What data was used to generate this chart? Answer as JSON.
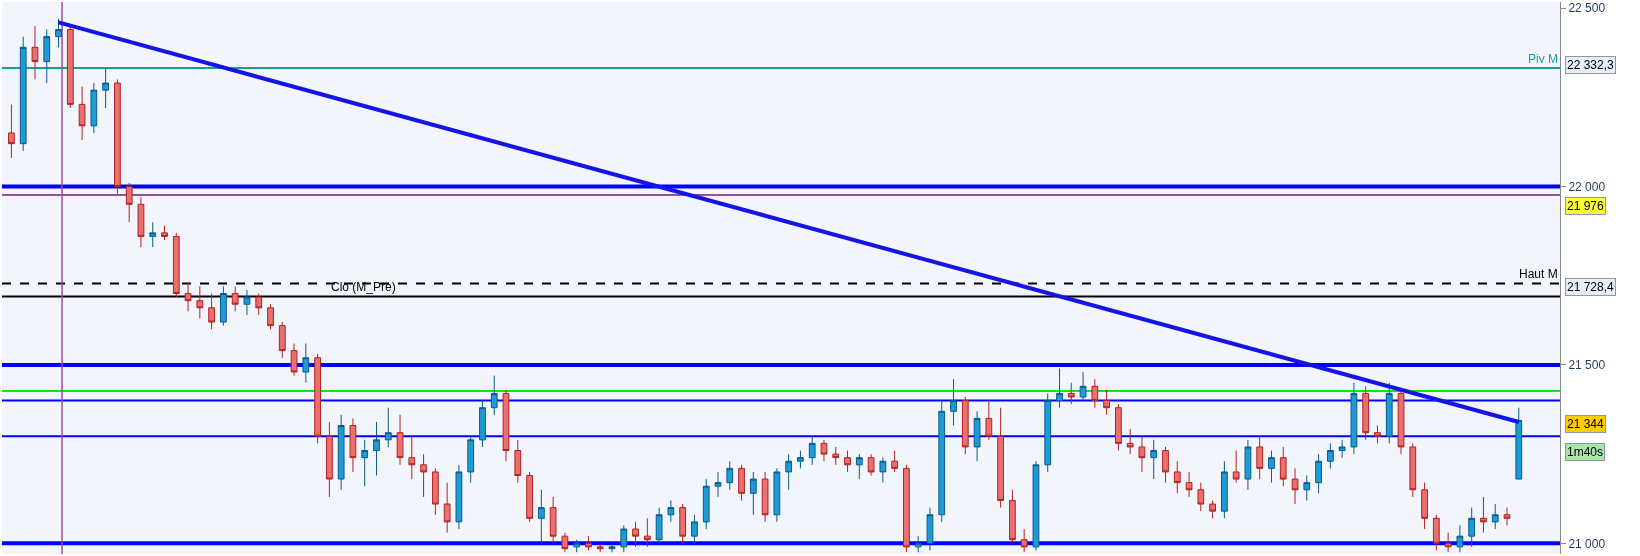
{
  "chart_data": {
    "type": "candlestick",
    "categories": [
      null,
      null,
      null,
      null,
      null,
      null,
      null,
      null,
      null,
      null,
      null,
      null,
      null,
      null,
      null,
      null,
      null,
      null,
      null,
      null,
      null,
      null,
      null,
      null,
      null,
      null,
      null,
      null,
      null,
      null,
      null,
      null,
      null,
      null,
      null,
      null,
      null,
      null,
      null,
      null,
      null,
      null,
      null,
      null,
      null,
      null,
      null,
      null,
      null,
      null,
      null,
      null,
      null,
      null,
      null,
      null,
      null,
      null,
      null,
      null,
      null,
      null,
      null,
      null,
      null,
      null,
      null,
      null,
      null,
      null,
      null,
      null,
      null,
      null,
      null,
      null,
      null,
      null,
      null,
      null,
      null,
      null,
      null,
      null,
      null,
      null,
      null,
      null,
      null,
      null,
      null,
      null,
      null,
      null,
      null,
      null,
      null,
      null,
      null,
      null,
      null,
      null,
      null,
      null,
      null,
      null,
      null,
      null,
      null,
      null,
      null,
      null,
      null,
      null,
      null,
      null,
      null,
      null,
      null,
      null,
      null,
      null,
      null,
      null,
      null,
      null,
      null,
      null,
      null
    ],
    "ohlc": [
      [
        22150,
        22230,
        22080,
        22120
      ],
      [
        22120,
        22420,
        22100,
        22390
      ],
      [
        22390,
        22450,
        22300,
        22350
      ],
      [
        22350,
        22440,
        22290,
        22420
      ],
      [
        22420,
        22470,
        22390,
        22440
      ],
      [
        22440,
        22450,
        22220,
        22230
      ],
      [
        22230,
        22280,
        22130,
        22170
      ],
      [
        22170,
        22290,
        22150,
        22270
      ],
      [
        22270,
        22330,
        22220,
        22290
      ],
      [
        22290,
        22300,
        21980,
        22000
      ],
      [
        22000,
        22010,
        21900,
        21950
      ],
      [
        21950,
        21970,
        21830,
        21860
      ],
      [
        21860,
        21900,
        21830,
        21870
      ],
      [
        21870,
        21890,
        21850,
        21860
      ],
      [
        21860,
        21870,
        21690,
        21700
      ],
      [
        21700,
        21730,
        21650,
        21680
      ],
      [
        21680,
        21720,
        21630,
        21660
      ],
      [
        21660,
        21700,
        21600,
        21620
      ],
      [
        21620,
        21720,
        21610,
        21700
      ],
      [
        21700,
        21720,
        21650,
        21670
      ],
      [
        21670,
        21710,
        21640,
        21690
      ],
      [
        21690,
        21700,
        21640,
        21660
      ],
      [
        21660,
        21670,
        21600,
        21610
      ],
      [
        21610,
        21620,
        21520,
        21540
      ],
      [
        21540,
        21560,
        21470,
        21480
      ],
      [
        21480,
        21560,
        21450,
        21520
      ],
      [
        21520,
        21530,
        21280,
        21300
      ],
      [
        21300,
        21340,
        21130,
        21180
      ],
      [
        21180,
        21360,
        21150,
        21330
      ],
      [
        21330,
        21350,
        21200,
        21240
      ],
      [
        21240,
        21290,
        21160,
        21260
      ],
      [
        21260,
        21340,
        21190,
        21290
      ],
      [
        21290,
        21380,
        21270,
        21310
      ],
      [
        21310,
        21360,
        21220,
        21240
      ],
      [
        21240,
        21300,
        21180,
        21220
      ],
      [
        21220,
        21250,
        21130,
        21200
      ],
      [
        21200,
        21210,
        21080,
        21110
      ],
      [
        21110,
        21170,
        21030,
        21060
      ],
      [
        21060,
        21220,
        21040,
        21200
      ],
      [
        21200,
        21300,
        21170,
        21290
      ],
      [
        21290,
        21400,
        21270,
        21380
      ],
      [
        21380,
        21470,
        21360,
        21420
      ],
      [
        21420,
        21430,
        21230,
        21260
      ],
      [
        21260,
        21290,
        21170,
        21190
      ],
      [
        21190,
        21200,
        21060,
        21070
      ],
      [
        21070,
        21150,
        21000,
        21100
      ],
      [
        21100,
        21130,
        21000,
        21020
      ],
      [
        21020,
        21030,
        20975,
        20985
      ],
      [
        20990,
        21010,
        20975,
        21000
      ],
      [
        21000,
        21020,
        20980,
        20990
      ],
      [
        20990,
        21000,
        20975,
        20985
      ],
      [
        20985,
        21000,
        20975,
        20990
      ],
      [
        20990,
        21050,
        20975,
        21040
      ],
      [
        21040,
        21060,
        20990,
        21020
      ],
      [
        21020,
        21070,
        20990,
        21010
      ],
      [
        21010,
        21100,
        21000,
        21080
      ],
      [
        21080,
        21120,
        21060,
        21100
      ],
      [
        21100,
        21110,
        21000,
        21020
      ],
      [
        21020,
        21080,
        21000,
        21060
      ],
      [
        21060,
        21180,
        21040,
        21160
      ],
      [
        21160,
        21200,
        21130,
        21170
      ],
      [
        21170,
        21230,
        21150,
        21210
      ],
      [
        21210,
        21220,
        21120,
        21140
      ],
      [
        21140,
        21200,
        21080,
        21180
      ],
      [
        21180,
        21200,
        21060,
        21080
      ],
      [
        21080,
        21210,
        21060,
        21200
      ],
      [
        21200,
        21250,
        21150,
        21230
      ],
      [
        21230,
        21260,
        21210,
        21240
      ],
      [
        21240,
        21300,
        21220,
        21280
      ],
      [
        21280,
        21290,
        21230,
        21250
      ],
      [
        21250,
        21270,
        21220,
        21240
      ],
      [
        21240,
        21260,
        21200,
        21220
      ],
      [
        21220,
        21250,
        21180,
        21240
      ],
      [
        21240,
        21250,
        21190,
        21200
      ],
      [
        21200,
        21240,
        21170,
        21230
      ],
      [
        21230,
        21260,
        21200,
        21210
      ],
      [
        21210,
        21220,
        20975,
        20990
      ],
      [
        20990,
        21020,
        20975,
        21000
      ],
      [
        21000,
        21100,
        20980,
        21080
      ],
      [
        21080,
        21400,
        21060,
        21370
      ],
      [
        21370,
        21460,
        21330,
        21400
      ],
      [
        21400,
        21410,
        21250,
        21270
      ],
      [
        21270,
        21370,
        21230,
        21350
      ],
      [
        21350,
        21400,
        21290,
        21300
      ],
      [
        21300,
        21380,
        21100,
        21120
      ],
      [
        21120,
        21150,
        21000,
        21010
      ],
      [
        21010,
        21040,
        20975,
        20990
      ],
      [
        20990,
        21230,
        20980,
        21220
      ],
      [
        21220,
        21420,
        21200,
        21400
      ],
      [
        21400,
        21490,
        21380,
        21420
      ],
      [
        21420,
        21450,
        21390,
        21410
      ],
      [
        21410,
        21480,
        21400,
        21440
      ],
      [
        21440,
        21460,
        21380,
        21400
      ],
      [
        21400,
        21430,
        21360,
        21380
      ],
      [
        21380,
        21390,
        21260,
        21280
      ],
      [
        21280,
        21320,
        21250,
        21270
      ],
      [
        21270,
        21300,
        21200,
        21240
      ],
      [
        21240,
        21290,
        21180,
        21260
      ],
      [
        21260,
        21270,
        21170,
        21200
      ],
      [
        21200,
        21230,
        21140,
        21170
      ],
      [
        21170,
        21200,
        21130,
        21150
      ],
      [
        21150,
        21170,
        21090,
        21110
      ],
      [
        21110,
        21120,
        21070,
        21090
      ],
      [
        21090,
        21230,
        21070,
        21200
      ],
      [
        21200,
        21260,
        21170,
        21180
      ],
      [
        21180,
        21290,
        21150,
        21270
      ],
      [
        21270,
        21300,
        21180,
        21210
      ],
      [
        21210,
        21260,
        21170,
        21240
      ],
      [
        21240,
        21270,
        21160,
        21180
      ],
      [
        21180,
        21210,
        21110,
        21150
      ],
      [
        21150,
        21190,
        21120,
        21170
      ],
      [
        21170,
        21250,
        21140,
        21230
      ],
      [
        21230,
        21280,
        21210,
        21260
      ],
      [
        21260,
        21290,
        21240,
        21270
      ],
      [
        21270,
        21450,
        21250,
        21420
      ],
      [
        21420,
        21440,
        21290,
        21310
      ],
      [
        21310,
        21330,
        21280,
        21300
      ],
      [
        21300,
        21450,
        21280,
        21420
      ],
      [
        21420,
        21430,
        21250,
        21270
      ],
      [
        21270,
        21280,
        21130,
        21150
      ],
      [
        21150,
        21170,
        21040,
        21070
      ],
      [
        21070,
        21080,
        20980,
        21000
      ],
      [
        21000,
        21030,
        20975,
        20990
      ],
      [
        20990,
        21050,
        20975,
        21020
      ],
      [
        21020,
        21100,
        20990,
        21070
      ],
      [
        21070,
        21130,
        21030,
        21060
      ],
      [
        21060,
        21110,
        21040,
        21080
      ],
      [
        21080,
        21100,
        21050,
        21070
      ],
      [
        21180,
        21380,
        21180,
        21344
      ]
    ],
    "series": [
      {
        "type": "line",
        "values": [
          null,
          null,
          null,
          null,
          22460,
          null,
          null,
          null,
          null,
          null,
          null,
          null,
          null,
          null,
          null,
          null,
          null,
          null,
          null,
          null,
          null,
          null,
          null,
          null,
          null,
          null,
          null,
          null,
          null,
          null,
          null,
          null,
          null,
          null,
          null,
          null,
          null,
          null,
          null,
          null,
          null,
          null,
          null,
          null,
          null,
          null,
          null,
          null,
          null,
          null,
          null,
          null,
          null,
          null,
          null,
          null,
          null,
          null,
          null,
          null,
          null,
          null,
          null,
          null,
          null,
          null,
          null,
          null,
          null,
          null,
          null,
          null,
          null,
          null,
          null,
          null,
          null,
          null,
          null,
          null,
          null,
          null,
          null,
          null,
          null,
          null,
          null,
          null,
          null,
          null,
          null,
          null,
          null,
          null,
          null,
          null,
          null,
          null,
          null,
          null,
          null,
          null,
          null,
          null,
          null,
          null,
          null,
          null,
          null,
          null,
          null,
          null,
          null,
          null,
          null,
          null,
          null,
          null,
          null,
          null,
          null,
          null,
          null,
          null,
          null,
          null,
          null,
          null,
          21340
        ],
        "color": "#1414e6"
      }
    ],
    "ylim": [
      20970,
      22517
    ],
    "yticks": [
      {
        "value": 21000,
        "label": "21 000"
      },
      {
        "value": 21500,
        "label": "21 500"
      },
      {
        "value": 22000,
        "label": "22 000"
      },
      {
        "value": 22500,
        "label": "22 500"
      }
    ],
    "ref_lines": [
      {
        "axis": "y",
        "value": 22332.3,
        "label": "Piv M",
        "color": "#1a9c9c"
      },
      {
        "axis": "y",
        "value": 22000,
        "color": "#0000ff"
      },
      {
        "axis": "y",
        "value": 21976,
        "color": "#9b4f9b"
      },
      {
        "axis": "y",
        "value": 21728.4,
        "label": "Haut M",
        "color": "#000000",
        "line_style": "dashed"
      },
      {
        "axis": "y",
        "value": 21692,
        "label": "Clo (M_Pre)",
        "color": "#000000"
      },
      {
        "axis": "y",
        "value": 21500,
        "color": "#0000ff"
      },
      {
        "axis": "y",
        "value": 21427,
        "color": "#00ee00"
      },
      {
        "axis": "y",
        "value": 21400,
        "color": "#0000ff"
      },
      {
        "axis": "y",
        "value": 21300,
        "color": "#0000ff"
      },
      {
        "axis": "y",
        "value": 21000,
        "color": "#0000ff"
      }
    ],
    "annotations": [
      "22 332,3",
      "21 976",
      "21 728,4",
      "21 344",
      "1m40s"
    ],
    "grid": false
  }
}
